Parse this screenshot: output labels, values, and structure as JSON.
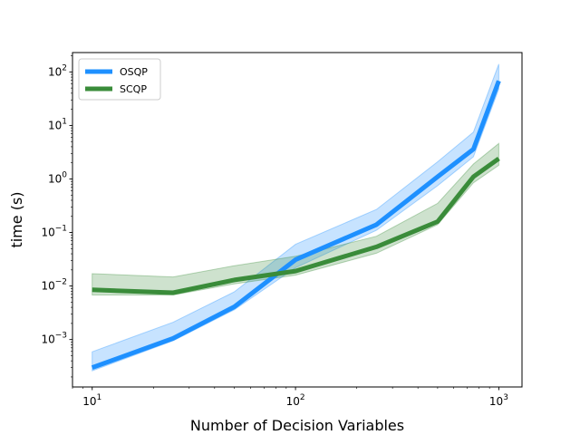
{
  "chart_data": {
    "type": "line",
    "xscale": "log",
    "yscale": "log",
    "xlabel": "Number of Decision Variables",
    "ylabel": "time (s)",
    "xlim": [
      8,
      1300
    ],
    "ylim": [
      0.00013,
      230
    ],
    "grid": false,
    "legend_position": "top-left",
    "xticks": [
      {
        "value": 10,
        "base": "10",
        "exp": "1"
      },
      {
        "value": 100,
        "base": "10",
        "exp": "2"
      },
      {
        "value": 1000,
        "base": "10",
        "exp": "3"
      }
    ],
    "yticks": [
      {
        "value": 0.001,
        "base": "10",
        "exp": "−3"
      },
      {
        "value": 0.01,
        "base": "10",
        "exp": "−2"
      },
      {
        "value": 0.1,
        "base": "10",
        "exp": "−1"
      },
      {
        "value": 1,
        "base": "10",
        "exp": "0"
      },
      {
        "value": 10,
        "base": "10",
        "exp": "1"
      },
      {
        "value": 100,
        "base": "10",
        "exp": "2"
      }
    ],
    "series": [
      {
        "name": "OSQP",
        "color": "#1e90ff",
        "x": [
          10,
          25,
          50,
          100,
          250,
          500,
          750,
          1000
        ],
        "y": [
          0.0003,
          0.00105,
          0.0041,
          0.031,
          0.14,
          1.1,
          3.6,
          68
        ],
        "y_low": [
          0.00026,
          0.00095,
          0.0036,
          0.022,
          0.11,
          0.75,
          2.6,
          48
        ],
        "y_high": [
          0.00059,
          0.0021,
          0.0078,
          0.06,
          0.27,
          2.1,
          7.5,
          140
        ]
      },
      {
        "name": "SCQP",
        "color": "#3a8c3a",
        "x": [
          10,
          25,
          50,
          100,
          250,
          500,
          750,
          1000
        ],
        "y": [
          0.0085,
          0.0075,
          0.013,
          0.019,
          0.054,
          0.16,
          1.1,
          2.4
        ],
        "y_low": [
          0.0068,
          0.0068,
          0.011,
          0.016,
          0.041,
          0.14,
          0.85,
          1.8
        ],
        "y_high": [
          0.017,
          0.0148,
          0.024,
          0.036,
          0.085,
          0.35,
          1.9,
          4.6
        ]
      }
    ]
  }
}
